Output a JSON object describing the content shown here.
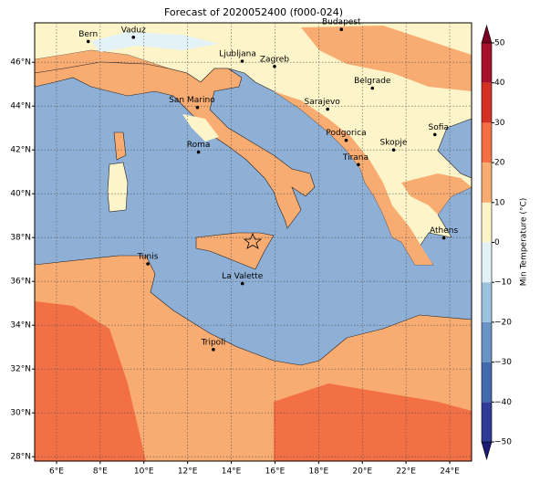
{
  "title": "Forecast of 2020052400 (f000-024)",
  "map": {
    "xlim": [
      5,
      25
    ],
    "ylim": [
      27.8,
      47.8
    ],
    "xticks": [
      {
        "value": 6,
        "label": "6°E"
      },
      {
        "value": 8,
        "label": "8°E"
      },
      {
        "value": 10,
        "label": "10°E"
      },
      {
        "value": 12,
        "label": "12°E"
      },
      {
        "value": 14,
        "label": "14°E"
      },
      {
        "value": 16,
        "label": "16°E"
      },
      {
        "value": 18,
        "label": "18°E"
      },
      {
        "value": 20,
        "label": "20°E"
      },
      {
        "value": 22,
        "label": "22°E"
      },
      {
        "value": 24,
        "label": "24°E"
      }
    ],
    "yticks": [
      {
        "value": 28,
        "label": "28°N"
      },
      {
        "value": 30,
        "label": "30°N"
      },
      {
        "value": 32,
        "label": "32°N"
      },
      {
        "value": 34,
        "label": "34°N"
      },
      {
        "value": 36,
        "label": "36°N"
      },
      {
        "value": 38,
        "label": "38°N"
      },
      {
        "value": 40,
        "label": "40°N"
      },
      {
        "value": 42,
        "label": "42°N"
      },
      {
        "value": 44,
        "label": "44°N"
      },
      {
        "value": 46,
        "label": "46°N"
      }
    ],
    "grid": true
  },
  "cities": [
    "Bern",
    "Vaduz",
    "Budapest",
    "Ljubljana",
    "Zagreb",
    "Belgrade",
    "San Marino",
    "Sarajevo",
    "Sofia",
    "Podgorica",
    "Skopje",
    "Roma",
    "Tirana",
    "Athens",
    "Tunis",
    "La Valette",
    "Tripoli"
  ],
  "colorbar": {
    "label": "Min Temperature (°C)",
    "lim": [
      -50,
      50
    ],
    "ticks": [
      {
        "value": -50,
        "label": "−50"
      },
      {
        "value": -40,
        "label": "−40"
      },
      {
        "value": -30,
        "label": "−30"
      },
      {
        "value": -20,
        "label": "−20"
      },
      {
        "value": -10,
        "label": "−10"
      },
      0,
      10,
      20,
      30,
      40,
      50
    ],
    "colors": [
      "#1b1b78",
      "#2e3c98",
      "#4169ab",
      "#6a94c6",
      "#9cc3de",
      "#e2f2f7",
      "#fdf5c9",
      "#f9ac72",
      "#f36f44",
      "#d33124",
      "#a7102a",
      "#7a0021"
    ]
  }
}
